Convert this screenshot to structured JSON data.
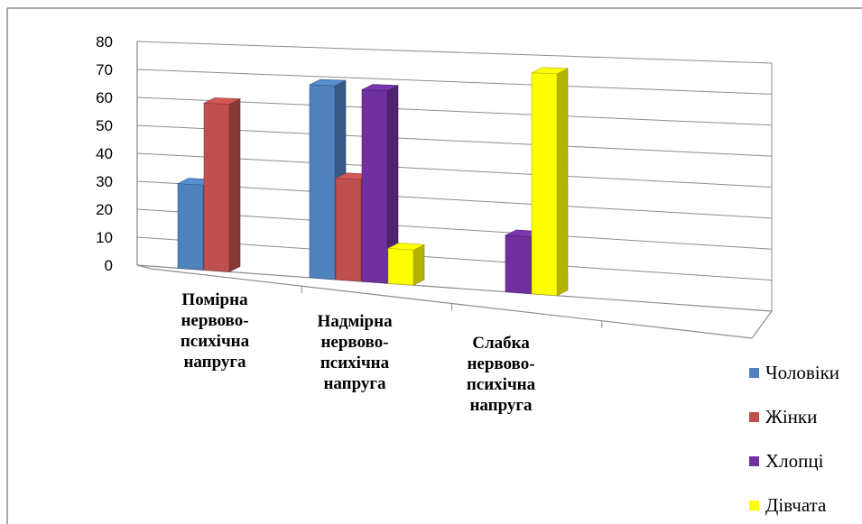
{
  "chart_data": {
    "type": "bar",
    "title": "",
    "xlabel": "",
    "ylabel": "",
    "ylim": [
      0,
      80
    ],
    "yticks": [
      0,
      10,
      20,
      30,
      40,
      50,
      60,
      70,
      80
    ],
    "grid": true,
    "legend_position": "bottom-right",
    "categories": [
      [
        "Помірна",
        "нервово-",
        "психічна",
        "напруга"
      ],
      [
        "Надмірна",
        "нервово-",
        "психічна",
        "напруга"
      ],
      [
        "Слабка",
        "нервово-",
        "психічна",
        "напруга"
      ]
    ],
    "series": [
      {
        "name": "Чоловіки",
        "color": "#4F81BD",
        "values": [
          30,
          67,
          null
        ]
      },
      {
        "name": "Жінки",
        "color": "#C0504D",
        "values": [
          59,
          35,
          null
        ]
      },
      {
        "name": "Хлопці",
        "color": "#7030A0",
        "values": [
          null,
          66,
          19
        ]
      },
      {
        "name": "Дівчата",
        "color": "#FFFF00",
        "values": [
          null,
          12,
          74
        ]
      }
    ]
  }
}
